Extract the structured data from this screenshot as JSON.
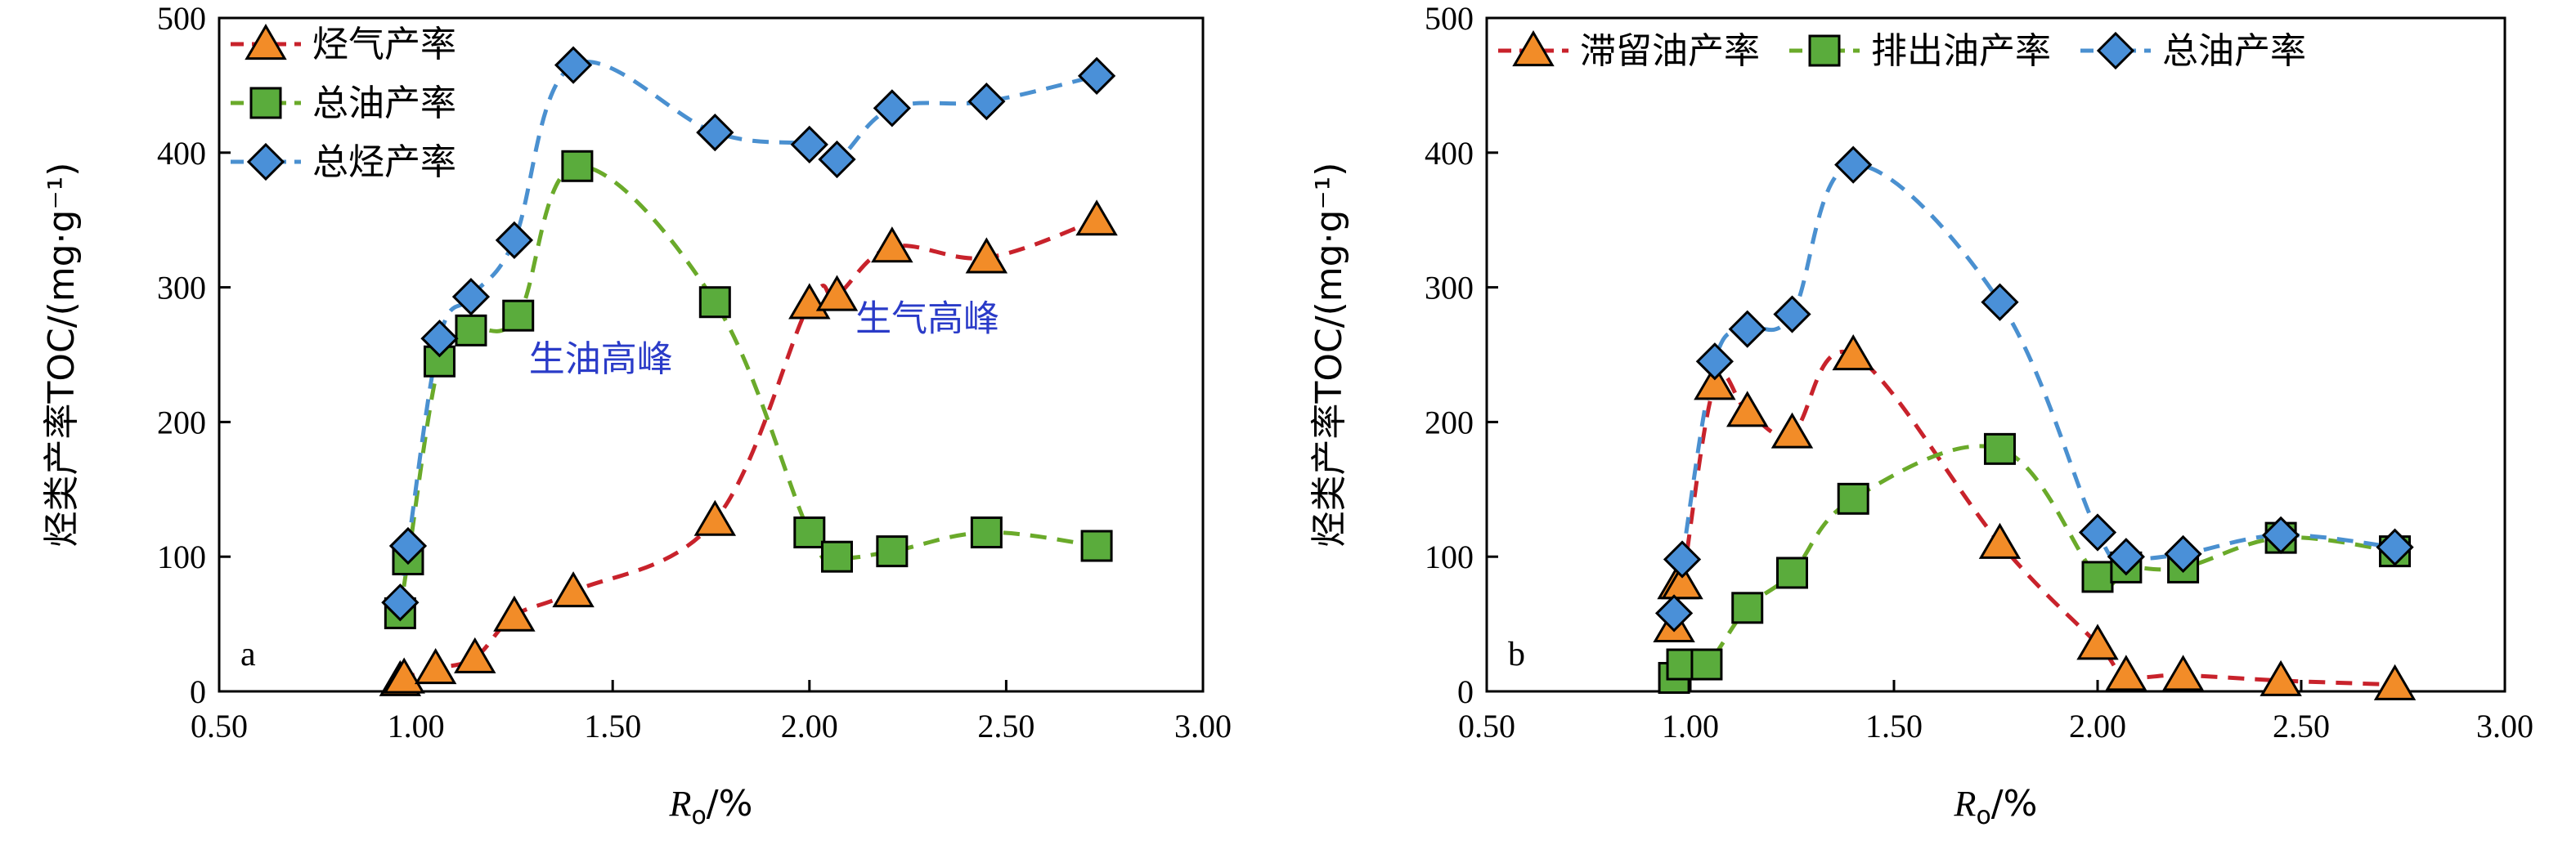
{
  "chart_data": [
    {
      "id": "a",
      "type": "line",
      "panel_label": "a",
      "xlabel": {
        "italic": "R",
        "sub": "o",
        "rest": "/%"
      },
      "ylabel": "烃类产率TOC/(mg·g⁻¹)",
      "xlim": [
        0.5,
        3.0
      ],
      "ylim": [
        0,
        500
      ],
      "xticks": [
        0.5,
        1.0,
        1.5,
        2.0,
        2.5,
        3.0
      ],
      "xtick_labels": [
        "0.50",
        "1.00",
        "1.50",
        "2.00",
        "2.50",
        "3.00"
      ],
      "yticks": [
        0,
        100,
        200,
        300,
        400,
        500
      ],
      "ytick_labels": [
        "0",
        "100",
        "200",
        "300",
        "400",
        "500"
      ],
      "legend_position": "top-left",
      "legend_layout": "vertical",
      "annotations": [
        {
          "text": "生油高峰",
          "x": 1.47,
          "y": 238
        },
        {
          "text": "生气高峰",
          "x": 2.3,
          "y": 268
        }
      ],
      "series": [
        {
          "name": "烃气产率",
          "marker": "triangle",
          "color": "#f28c28",
          "line_color": "#c8222b",
          "x": [
            0.96,
            0.97,
            1.05,
            1.15,
            1.25,
            1.4,
            1.76,
            2.0,
            2.07,
            2.21,
            2.45,
            2.73
          ],
          "y": [
            8,
            10,
            17,
            25,
            56,
            74,
            127,
            288,
            294,
            330,
            322,
            350
          ]
        },
        {
          "name": "总油产率",
          "marker": "square",
          "color": "#5aac3c",
          "line_color": "#6aaa2a",
          "x": [
            0.96,
            0.98,
            1.06,
            1.14,
            1.26,
            1.41,
            1.76,
            2.0,
            2.07,
            2.21,
            2.45,
            2.73
          ],
          "y": [
            58,
            98,
            245,
            268,
            279,
            390,
            289,
            118,
            100,
            104,
            118,
            108
          ]
        },
        {
          "name": "总烃产率",
          "marker": "diamond",
          "color": "#4a90d8",
          "line_color": "#4a90d0",
          "x": [
            0.96,
            0.98,
            1.06,
            1.14,
            1.25,
            1.4,
            1.76,
            2.0,
            2.07,
            2.21,
            2.45,
            2.73
          ],
          "y": [
            66,
            108,
            262,
            293,
            335,
            465,
            415,
            406,
            395,
            433,
            438,
            457
          ]
        }
      ]
    },
    {
      "id": "b",
      "type": "line",
      "panel_label": "b",
      "xlabel": {
        "italic": "R",
        "sub": "o",
        "rest": "/%"
      },
      "ylabel": "烃类产率TOC/(mg·g⁻¹)",
      "xlim": [
        0.5,
        3.0
      ],
      "ylim": [
        0,
        500
      ],
      "xticks": [
        0.5,
        1.0,
        1.5,
        2.0,
        2.5,
        3.0
      ],
      "xtick_labels": [
        "0.50",
        "1.00",
        "1.50",
        "2.00",
        "2.50",
        "3.00"
      ],
      "yticks": [
        0,
        100,
        200,
        300,
        400,
        500
      ],
      "ytick_labels": [
        "0",
        "100",
        "200",
        "300",
        "400",
        "500"
      ],
      "legend_position": "top",
      "legend_layout": "horizontal",
      "annotations": [],
      "series": [
        {
          "name": "滞留油产率",
          "marker": "triangle",
          "color": "#f28c28",
          "line_color": "#c8222b",
          "x": [
            0.96,
            0.97,
            0.98,
            1.06,
            1.14,
            1.25,
            1.4,
            1.76,
            2.0,
            2.07,
            2.21,
            2.45,
            2.73
          ],
          "y": [
            48,
            80,
            80,
            228,
            208,
            192,
            250,
            110,
            35,
            12,
            12,
            8,
            5
          ]
        },
        {
          "name": "排出油产率",
          "marker": "square",
          "color": "#5aac3c",
          "line_color": "#6aaa2a",
          "x": [
            0.96,
            0.98,
            1.04,
            1.14,
            1.25,
            1.4,
            1.76,
            2.0,
            2.07,
            2.21,
            2.45,
            2.73
          ],
          "y": [
            10,
            20,
            20,
            62,
            88,
            143,
            180,
            85,
            92,
            92,
            114,
            104
          ]
        },
        {
          "name": "总油产率",
          "marker": "diamond",
          "color": "#4a90d8",
          "line_color": "#4a90d0",
          "x": [
            0.96,
            0.98,
            1.06,
            1.14,
            1.25,
            1.4,
            1.76,
            2.0,
            2.07,
            2.21,
            2.45,
            2.73
          ],
          "y": [
            58,
            98,
            245,
            269,
            280,
            391,
            289,
            118,
            100,
            102,
            116,
            107
          ]
        }
      ]
    }
  ]
}
